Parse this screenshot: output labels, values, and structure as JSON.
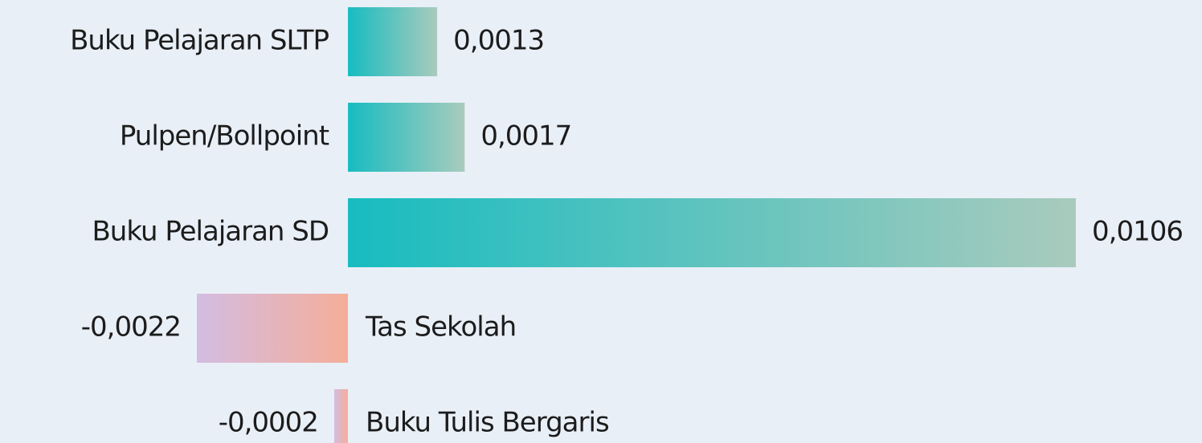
{
  "chart_data": {
    "type": "bar",
    "orientation": "horizontal",
    "categories": [
      "Buku Pelajaran SLTP",
      "Pulpen/Bollpoint",
      "Buku Pelajaran SD",
      "Tas Sekolah",
      "Buku Tulis Bergaris"
    ],
    "values": [
      0.0013,
      0.0017,
      0.0106,
      -0.0022,
      -0.0002
    ],
    "value_labels": [
      "0,0013",
      "0,0017",
      "0,0106",
      "-0,0022",
      "-0,0002"
    ],
    "positive_colors": [
      "#17bcc0",
      "#a9cbbd"
    ],
    "negative_colors": [
      "#d3bde2",
      "#f5ad98"
    ]
  }
}
